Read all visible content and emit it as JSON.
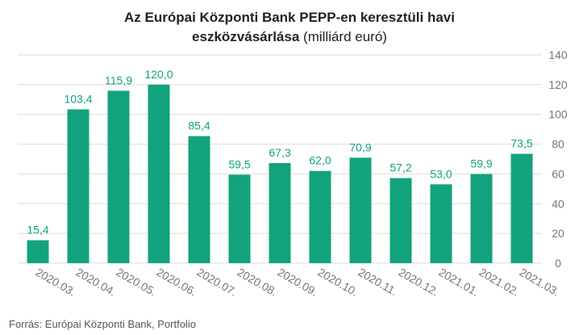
{
  "title": {
    "line1": "Az Európai Központi Bank PEPP-en keresztüli havi",
    "line2_bold": "eszközvásárlása",
    "line2_light": " (milliárd euró)"
  },
  "source": "Forrás: Európai Központi Bank, Portfolio",
  "colors": {
    "bar": "#12a37c",
    "label": "#12a37c",
    "grid": "#dddddd",
    "tick": "#777777"
  },
  "chart_data": {
    "type": "bar",
    "title": "Az Európai Központi Bank PEPP-en keresztüli havi eszközvásárlása (milliárd euró)",
    "categories": [
      "2020.03.",
      "2020.04.",
      "2020.05.",
      "2020.06.",
      "2020.07.",
      "2020.08.",
      "2020.09.",
      "2020.10.",
      "2020.11.",
      "2020.12.",
      "2021.01.",
      "2021.02.",
      "2021.03."
    ],
    "values": [
      15.4,
      103.4,
      115.9,
      120.0,
      85.4,
      59.5,
      67.3,
      62.0,
      70.9,
      57.2,
      53.0,
      59.9,
      73.5
    ],
    "value_labels": [
      "15,4",
      "103,4",
      "115,9",
      "120,0",
      "85,4",
      "59,5",
      "67,3",
      "62,0",
      "70,9",
      "57,2",
      "53,0",
      "59,9",
      "73,5"
    ],
    "ylim": [
      0,
      140
    ],
    "yticks": [
      0,
      20,
      40,
      60,
      80,
      100,
      120,
      140
    ],
    "y_axis_side": "right",
    "grid": true,
    "xlabel": "",
    "ylabel": ""
  }
}
